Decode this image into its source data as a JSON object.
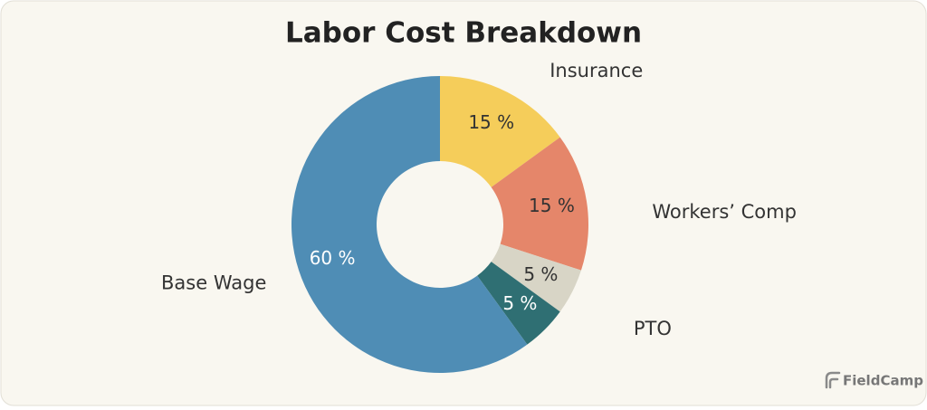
{
  "chart_data": {
    "type": "donut",
    "title": "Labor Cost Breakdown",
    "categories": [
      "Insurance",
      "Workers’ Comp",
      "PTO",
      null,
      "Base Wage"
    ],
    "values": [
      15,
      15,
      5,
      5,
      60
    ],
    "value_labels": [
      "15 %",
      "15 %",
      "5 %",
      "5 %",
      "60 %"
    ],
    "colors": [
      "#f5cd5a",
      "#e5866a",
      "#d8d5c6",
      "#2f6f73",
      "#4f8db5"
    ]
  },
  "brand": "FieldCamp"
}
